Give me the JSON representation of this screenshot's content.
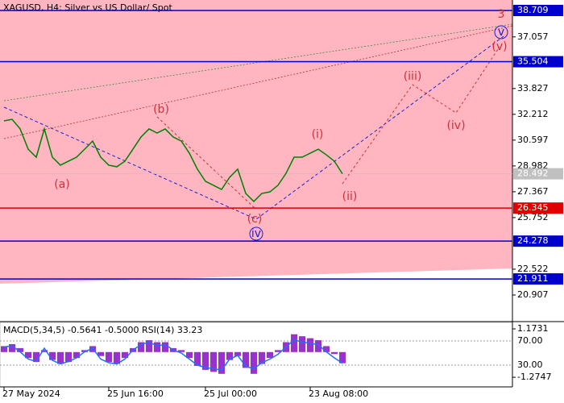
{
  "chart_data": {
    "type": "line",
    "title": "XAGUSD, H4:  Silver vs US Dollar/ Spot",
    "color": "#008000",
    "categories": [
      "27 May 2024",
      null,
      null,
      null,
      null,
      null,
      null,
      null,
      null,
      null,
      null,
      null,
      null,
      "25 Jun 16:00",
      null,
      null,
      null,
      null,
      null,
      null,
      null,
      null,
      null,
      null,
      null,
      "25 Jul 00:00",
      null,
      null,
      null,
      null,
      null,
      null,
      null,
      null,
      null,
      null,
      null,
      null,
      "23 Aug 08:00",
      null,
      null,
      null,
      null
    ],
    "values": [
      31.8,
      31.9,
      31.3,
      30.03,
      29.53,
      31.3,
      29.53,
      29.03,
      29.28,
      29.53,
      30.03,
      30.54,
      29.53,
      29.03,
      28.93,
      29.28,
      30.03,
      30.79,
      31.3,
      31.04,
      31.3,
      30.79,
      30.54,
      29.78,
      28.78,
      28.02,
      27.77,
      27.51,
      28.27,
      28.78,
      27.26,
      26.76,
      27.26,
      27.36,
      27.77,
      28.52,
      29.53,
      29.53,
      29.78,
      30.03,
      29.68,
      29.28,
      28.49
    ],
    "ylim": [
      19.293,
      39.365
    ],
    "yticks": [
      37.057,
      33.827,
      32.212,
      30.597,
      28.982,
      27.367,
      25.752,
      22.522,
      20.907
    ],
    "levels": [
      {
        "value": 38.709,
        "color": "#0000cd"
      },
      {
        "value": 35.504,
        "color": "#0000cd"
      },
      {
        "value": 26.345,
        "color": "#e00000"
      },
      {
        "value": 24.278,
        "color": "#0000cd"
      },
      {
        "value": 21.911,
        "color": "#0000cd"
      }
    ],
    "current": 28.492,
    "annotations": [
      "(a)",
      "(b)",
      "(c)",
      "iv",
      "(i)",
      "(ii)",
      "(iii)",
      "(iv)",
      "(v)",
      "v",
      "3"
    ],
    "indicator": {
      "title": "MACD(5,34,5) -0.5641 -0.5000 RSI(14) 33.23",
      "macd_color": "#9932cc",
      "rsi_color": "#1e6fff",
      "macd": [
        0.3,
        0.4,
        0.2,
        -0.3,
        -0.5,
        0.1,
        -0.4,
        -0.6,
        -0.5,
        -0.3,
        0.1,
        0.3,
        -0.2,
        -0.5,
        -0.6,
        -0.3,
        0.2,
        0.5,
        0.6,
        0.5,
        0.5,
        0.2,
        0.1,
        -0.3,
        -0.7,
        -0.9,
        -1.0,
        -1.1,
        -0.4,
        -0.2,
        -0.8,
        -1.1,
        -0.6,
        -0.3,
        0.1,
        0.5,
        0.9,
        0.8,
        0.7,
        0.6,
        0.3,
        -0.1,
        -0.5641
      ],
      "rsi": [
        60,
        62,
        52,
        40,
        36,
        58,
        38,
        32,
        36,
        42,
        52,
        58,
        40,
        34,
        32,
        40,
        55,
        64,
        68,
        62,
        64,
        55,
        50,
        40,
        30,
        26,
        24,
        22,
        40,
        46,
        28,
        24,
        34,
        40,
        48,
        60,
        72,
        68,
        66,
        64,
        52,
        42,
        33.23
      ],
      "macd_ylim": [
        -1.76,
        1.5
      ],
      "macd_ticks": [
        1.1731,
        -1.2747
      ],
      "rsi_ylim": [
        -6,
        100.7
      ],
      "rsi_ticks": [
        {
          "value": 70,
          "label": "70.00"
        },
        {
          "value": 30,
          "label": "30.00"
        }
      ]
    }
  }
}
